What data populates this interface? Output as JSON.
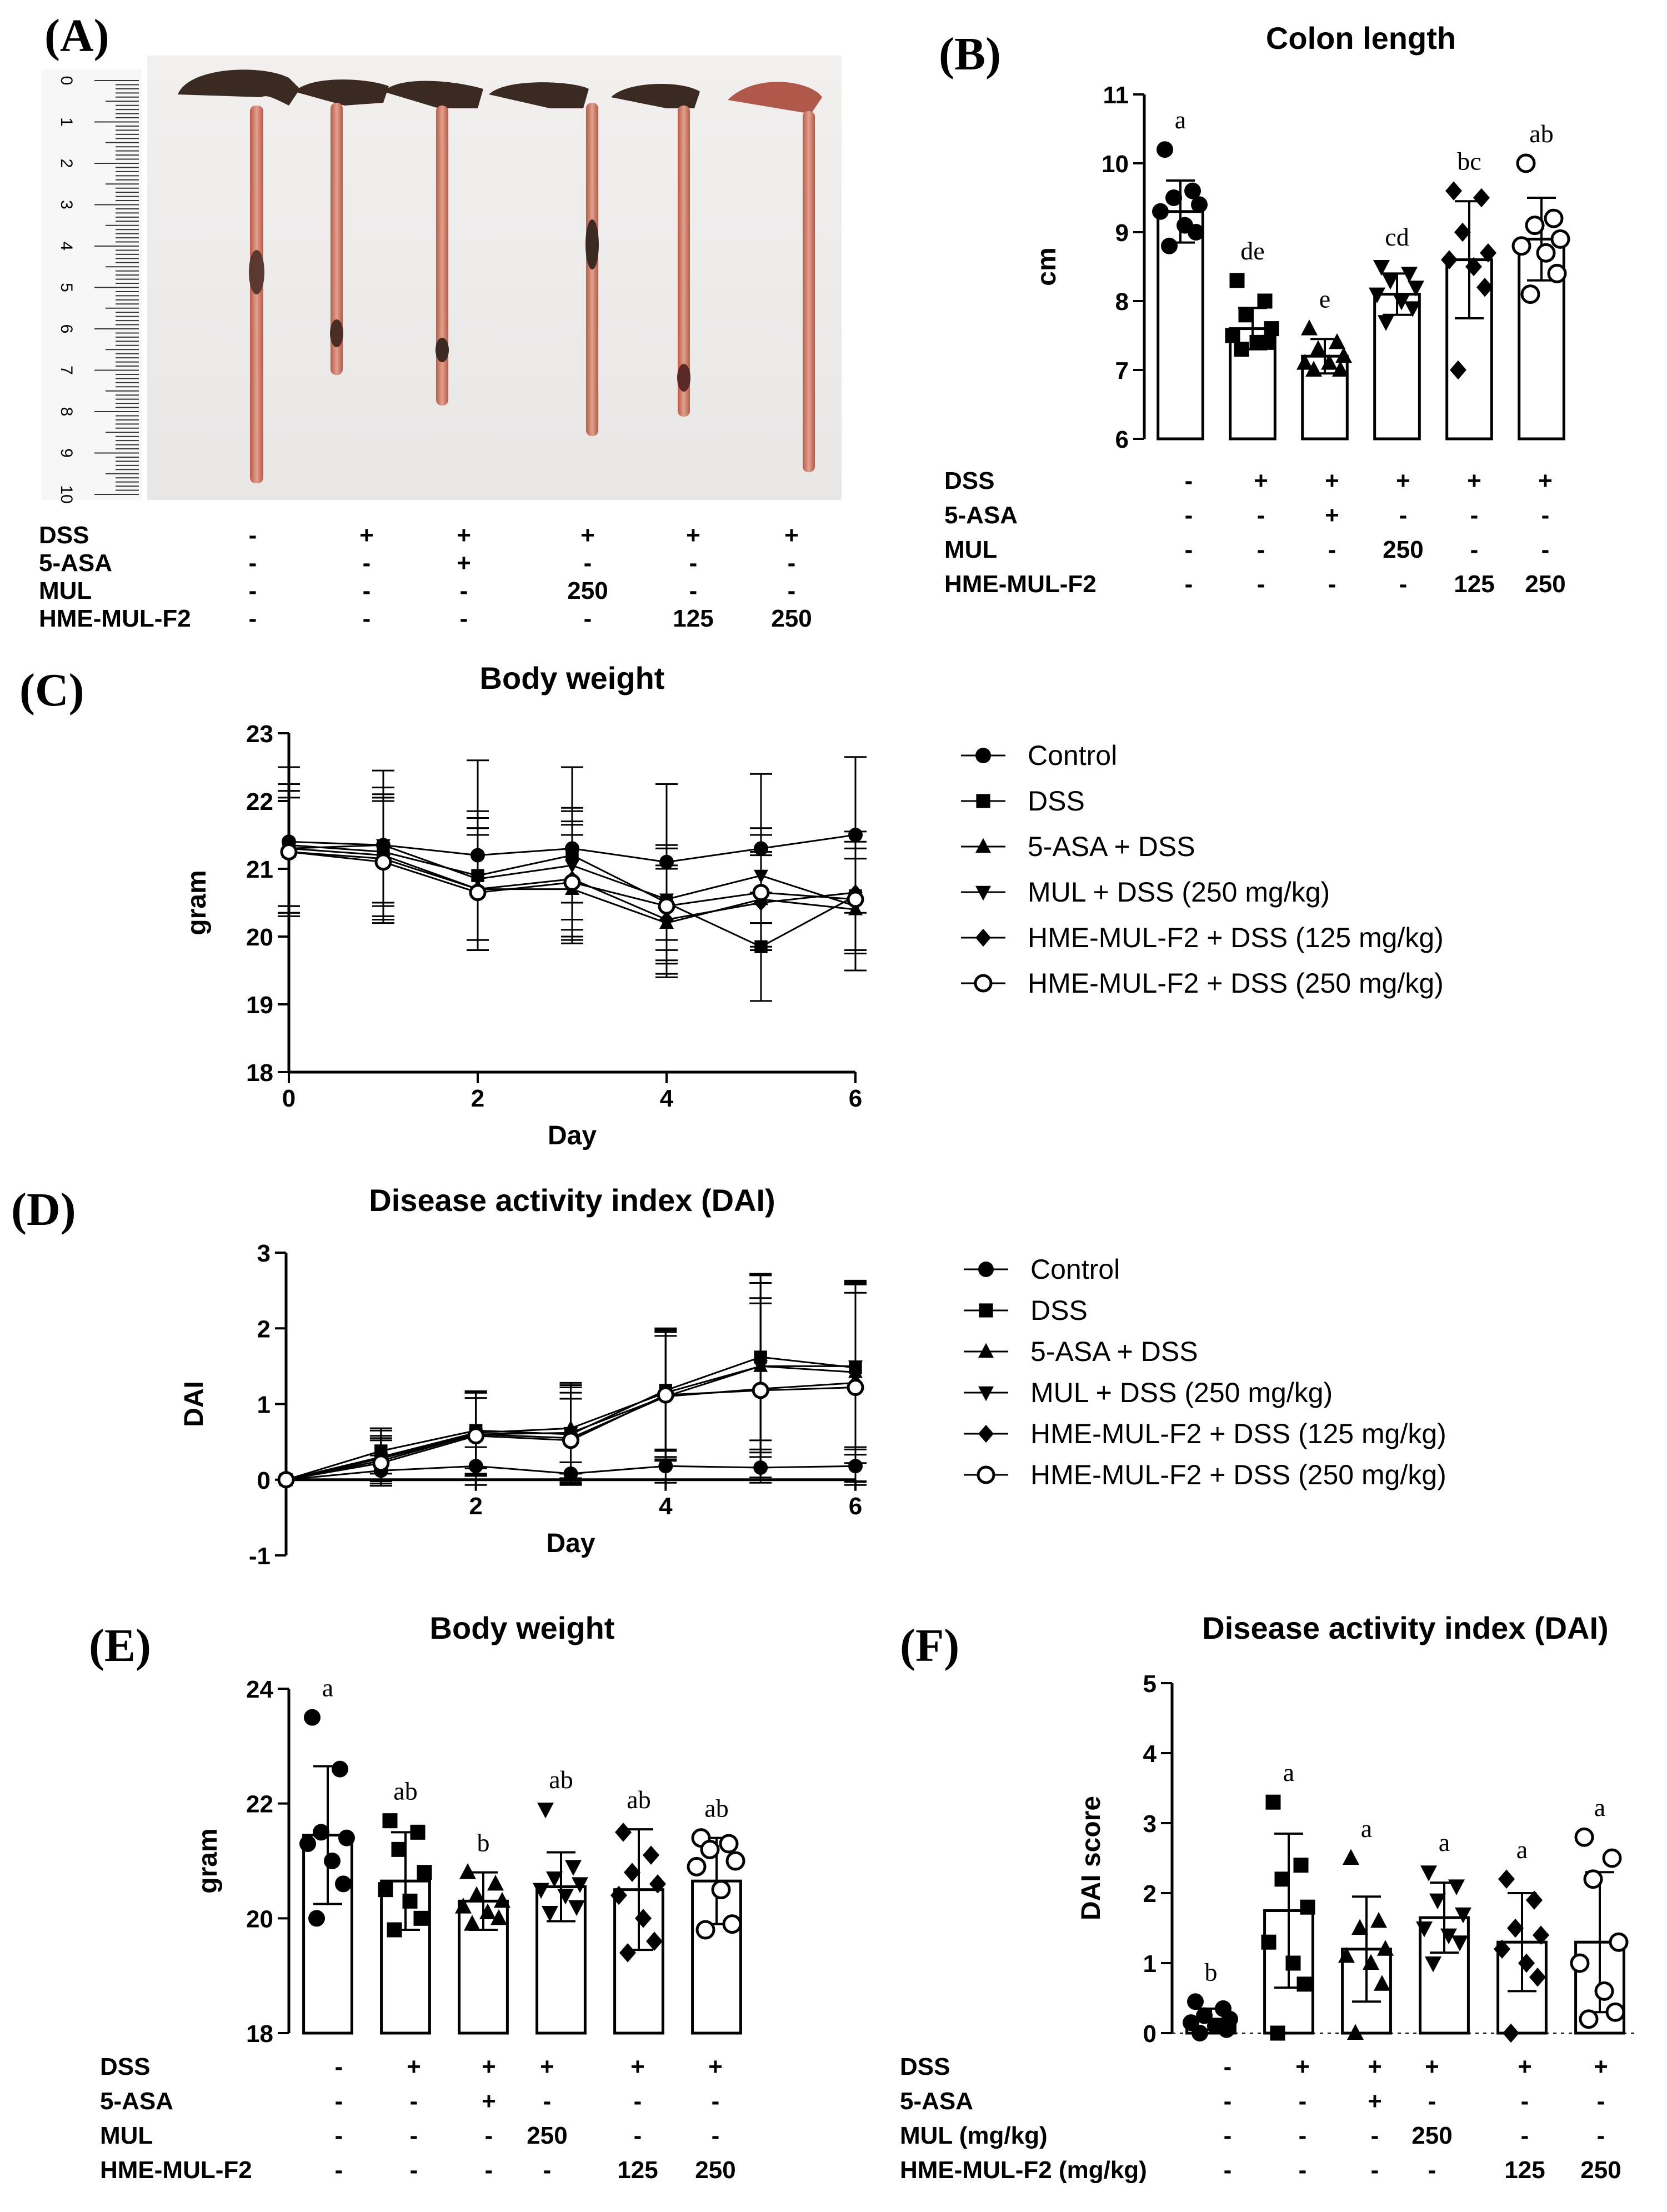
{
  "panels": {
    "A": {
      "letter": "(A)",
      "ruler_ticks": [
        "0",
        "1",
        "2",
        "3",
        "4",
        "5",
        "6",
        "7",
        "8",
        "9",
        "10"
      ]
    },
    "B": {
      "letter": "(B)"
    },
    "C": {
      "letter": "(C)"
    },
    "D": {
      "letter": "(D)"
    },
    "E": {
      "letter": "(E)"
    },
    "F": {
      "letter": "(F)"
    }
  },
  "treatments": {
    "rows": [
      {
        "label": "DSS",
        "cells": [
          "-",
          "+",
          "+",
          "+",
          "+",
          "+"
        ]
      },
      {
        "label": "5-ASA",
        "cells": [
          "-",
          "-",
          "+",
          "-",
          "-",
          "-"
        ]
      },
      {
        "label": "MUL",
        "cells": [
          "-",
          "-",
          "-",
          "250",
          "-",
          "-"
        ]
      },
      {
        "label": "HME-MUL-F2",
        "cells": [
          "-",
          "-",
          "-",
          "-",
          "125",
          "250"
        ]
      }
    ],
    "rows_F": [
      {
        "label": "DSS",
        "cells": [
          "-",
          "+",
          "+",
          "+",
          "+",
          "+"
        ]
      },
      {
        "label": "5-ASA",
        "cells": [
          "-",
          "-",
          "+",
          "-",
          "-",
          "-"
        ]
      },
      {
        "label": "MUL (mg/kg)",
        "cells": [
          "-",
          "-",
          "-",
          "250",
          "-",
          "-"
        ]
      },
      {
        "label": "HME-MUL-F2 (mg/kg)",
        "cells": [
          "-",
          "-",
          "-",
          "-",
          "125",
          "250"
        ]
      }
    ]
  },
  "colors": {
    "ink": "#000000",
    "background": "#ffffff",
    "colon_tissue": "#c9735f",
    "colon_cecum": "#3a2a22"
  },
  "chart_data": [
    {
      "id": "B",
      "type": "bar",
      "title": "Colon length",
      "xlabel": "",
      "ylabel": "cm",
      "ylim": [
        6,
        11
      ],
      "yticks": [
        6,
        7,
        8,
        9,
        10,
        11
      ],
      "values": [
        9.3,
        7.6,
        7.2,
        8.1,
        8.6,
        8.9
      ],
      "errors": [
        0.45,
        0.3,
        0.25,
        0.3,
        0.85,
        0.6
      ],
      "significance": [
        "a",
        "de",
        "e",
        "cd",
        "bc",
        "ab"
      ],
      "points": [
        [
          10.2,
          9.6,
          9.5,
          9.4,
          9.3,
          9.1,
          9.0,
          8.8
        ],
        [
          8.3,
          8.0,
          7.8,
          7.6,
          7.5,
          7.4,
          7.4,
          7.3
        ],
        [
          7.6,
          7.4,
          7.3,
          7.2,
          7.1,
          7.1,
          7.0,
          7.0
        ],
        [
          8.5,
          8.4,
          8.3,
          8.2,
          8.1,
          8.0,
          7.9,
          7.7
        ],
        [
          9.6,
          9.5,
          9.0,
          8.7,
          8.6,
          8.5,
          8.2,
          7.0
        ],
        [
          10.0,
          9.2,
          9.1,
          8.9,
          8.8,
          8.7,
          8.4,
          8.1
        ]
      ],
      "markers": [
        "circle",
        "square",
        "triangle-up",
        "triangle-down",
        "diamond",
        "circle-open"
      ]
    },
    {
      "id": "C",
      "type": "line",
      "title": "Body weight",
      "xlabel": "Day",
      "ylabel": "gram",
      "xlim": [
        0,
        6
      ],
      "xticks": [
        0,
        2,
        4,
        6
      ],
      "ylim": [
        18,
        23
      ],
      "yticks": [
        18,
        19,
        20,
        21,
        22,
        23
      ],
      "x": [
        0,
        1,
        2,
        3,
        4,
        5,
        6
      ],
      "series": [
        {
          "name": "Control",
          "marker": "circle",
          "values": [
            21.4,
            21.35,
            21.2,
            21.3,
            21.1,
            21.3,
            21.5
          ],
          "errors": [
            1.1,
            1.1,
            1.4,
            1.2,
            1.15,
            1.1,
            1.15
          ]
        },
        {
          "name": "DSS",
          "marker": "square",
          "values": [
            21.35,
            21.25,
            20.9,
            21.2,
            20.5,
            19.85,
            20.6
          ],
          "errors": [
            0.9,
            0.8,
            0.95,
            0.7,
            0.85,
            0.8,
            0.8
          ]
        },
        {
          "name": "5-ASA + DSS",
          "marker": "triangle-up",
          "values": [
            21.25,
            21.15,
            20.7,
            20.7,
            20.2,
            20.55,
            20.4
          ],
          "errors": [
            0.8,
            0.9,
            0.9,
            0.8,
            0.8,
            0.7,
            0.9
          ]
        },
        {
          "name": "MUL + DSS (250 mg/kg)",
          "marker": "triangle-down",
          "values": [
            21.3,
            21.35,
            20.85,
            21.05,
            20.55,
            20.9,
            20.45
          ],
          "errors": [
            0.85,
            0.85,
            0.9,
            0.8,
            0.75,
            0.7,
            0.7
          ]
        },
        {
          "name": "HME-MUL-F2 + DSS (125 mg/kg)",
          "marker": "diamond",
          "values": [
            21.3,
            21.2,
            20.7,
            20.85,
            20.25,
            20.5,
            20.65
          ],
          "errors": [
            0.95,
            0.9,
            0.9,
            0.85,
            0.8,
            0.7,
            0.9
          ]
        },
        {
          "name": "HME-MUL-F2 + DSS (250 mg/kg)",
          "marker": "circle-open",
          "values": [
            21.25,
            21.1,
            20.65,
            20.8,
            20.45,
            20.65,
            20.55
          ],
          "errors": [
            0.9,
            0.9,
            0.85,
            0.85,
            0.85,
            0.85,
            0.75
          ]
        }
      ]
    },
    {
      "id": "D",
      "type": "line",
      "title": "Disease activity index (DAI)",
      "xlabel": "Day",
      "ylabel": "DAI",
      "xlim": [
        0,
        6
      ],
      "xticks": [
        2,
        4,
        6
      ],
      "ylim": [
        -1,
        3
      ],
      "yticks": [
        -1,
        0,
        1,
        2,
        3
      ],
      "x": [
        0,
        1,
        2,
        3,
        4,
        5,
        6
      ],
      "series": [
        {
          "name": "Control",
          "marker": "circle",
          "values": [
            0,
            0.12,
            0.18,
            0.08,
            0.18,
            0.16,
            0.18
          ],
          "errors": [
            0,
            0.2,
            0.25,
            0.15,
            0.22,
            0.2,
            0.25
          ]
        },
        {
          "name": "DSS",
          "marker": "square",
          "values": [
            0,
            0.38,
            0.65,
            0.6,
            1.18,
            1.62,
            1.48
          ],
          "errors": [
            0,
            0.3,
            0.5,
            0.65,
            0.8,
            1.1,
            1.15
          ]
        },
        {
          "name": "5-ASA + DSS",
          "marker": "triangle-up",
          "values": [
            0,
            0.3,
            0.62,
            0.68,
            1.15,
            1.5,
            1.42
          ],
          "errors": [
            0,
            0.35,
            0.55,
            0.6,
            0.85,
            1.2,
            1.2
          ]
        },
        {
          "name": "MUL + DSS (250 mg/kg)",
          "marker": "triangle-down",
          "values": [
            0,
            0.28,
            0.6,
            0.62,
            1.1,
            1.5,
            1.5
          ],
          "errors": [
            0,
            0.3,
            0.55,
            0.6,
            0.8,
            1.1,
            1.1
          ]
        },
        {
          "name": "HME-MUL-F2 + DSS (125 mg/kg)",
          "marker": "diamond",
          "values": [
            0,
            0.25,
            0.6,
            0.55,
            1.1,
            1.2,
            1.28
          ],
          "errors": [
            0,
            0.3,
            0.55,
            0.6,
            0.85,
            1.2,
            1.3
          ]
        },
        {
          "name": "HME-MUL-F2 + DSS (250 mg/kg)",
          "marker": "circle-open",
          "values": [
            0,
            0.22,
            0.58,
            0.52,
            1.12,
            1.18,
            1.22
          ],
          "errors": [
            0,
            0.3,
            0.5,
            0.55,
            0.85,
            1.15,
            1.25
          ]
        }
      ]
    },
    {
      "id": "E",
      "type": "bar",
      "title": "Body weight",
      "xlabel": "",
      "ylabel": "gram",
      "ylim": [
        18,
        24
      ],
      "yticks": [
        18,
        20,
        22,
        24
      ],
      "values": [
        21.45,
        20.65,
        20.3,
        20.55,
        20.5,
        20.65
      ],
      "errors": [
        1.2,
        0.85,
        0.5,
        0.6,
        1.05,
        0.75
      ],
      "significance": [
        "a",
        "ab",
        "b",
        "ab",
        "ab",
        "ab"
      ],
      "points": [
        [
          23.5,
          22.6,
          21.5,
          21.4,
          21.3,
          21.0,
          20.6,
          20.0
        ],
        [
          21.7,
          21.5,
          21.2,
          20.8,
          20.5,
          20.3,
          20.0,
          19.8
        ],
        [
          20.8,
          20.6,
          20.4,
          20.3,
          20.2,
          20.1,
          20.0,
          19.9
        ],
        [
          21.9,
          20.9,
          20.7,
          20.6,
          20.5,
          20.4,
          20.2,
          20.1
        ],
        [
          21.5,
          21.1,
          20.8,
          20.6,
          20.4,
          20.0,
          19.6,
          19.4
        ],
        [
          21.4,
          21.3,
          21.2,
          21.0,
          20.9,
          20.5,
          19.9,
          19.8
        ]
      ],
      "markers": [
        "circle",
        "square",
        "triangle-up",
        "triangle-down",
        "diamond",
        "circle-open"
      ]
    },
    {
      "id": "F",
      "type": "bar",
      "title": "Disease activity index (DAI)",
      "xlabel": "",
      "ylabel": "DAI score",
      "ylim": [
        0,
        5
      ],
      "yticks": [
        0,
        1,
        2,
        3,
        4,
        5
      ],
      "values": [
        0.2,
        1.75,
        1.2,
        1.65,
        1.3,
        1.3
      ],
      "errors": [
        0.15,
        1.1,
        0.75,
        0.5,
        0.7,
        1.0
      ],
      "significance": [
        "b",
        "a",
        "a",
        "a",
        "a",
        "a"
      ],
      "points": [
        [
          0.45,
          0.35,
          0.25,
          0.2,
          0.15,
          0.1,
          0.05,
          0.0
        ],
        [
          3.3,
          2.4,
          2.2,
          1.8,
          1.3,
          1.0,
          0.7,
          0.0
        ],
        [
          2.5,
          1.6,
          1.5,
          1.2,
          1.1,
          1.0,
          0.7,
          0.0
        ],
        [
          2.3,
          2.1,
          1.9,
          1.7,
          1.5,
          1.4,
          1.3,
          1.0
        ],
        [
          2.2,
          1.9,
          1.5,
          1.4,
          1.2,
          1.0,
          0.8,
          0.0
        ],
        [
          2.8,
          2.5,
          2.2,
          1.3,
          1.0,
          0.6,
          0.3,
          0.2
        ]
      ],
      "markers": [
        "circle",
        "square",
        "triangle-up",
        "triangle-down",
        "diamond",
        "circle-open"
      ]
    }
  ]
}
